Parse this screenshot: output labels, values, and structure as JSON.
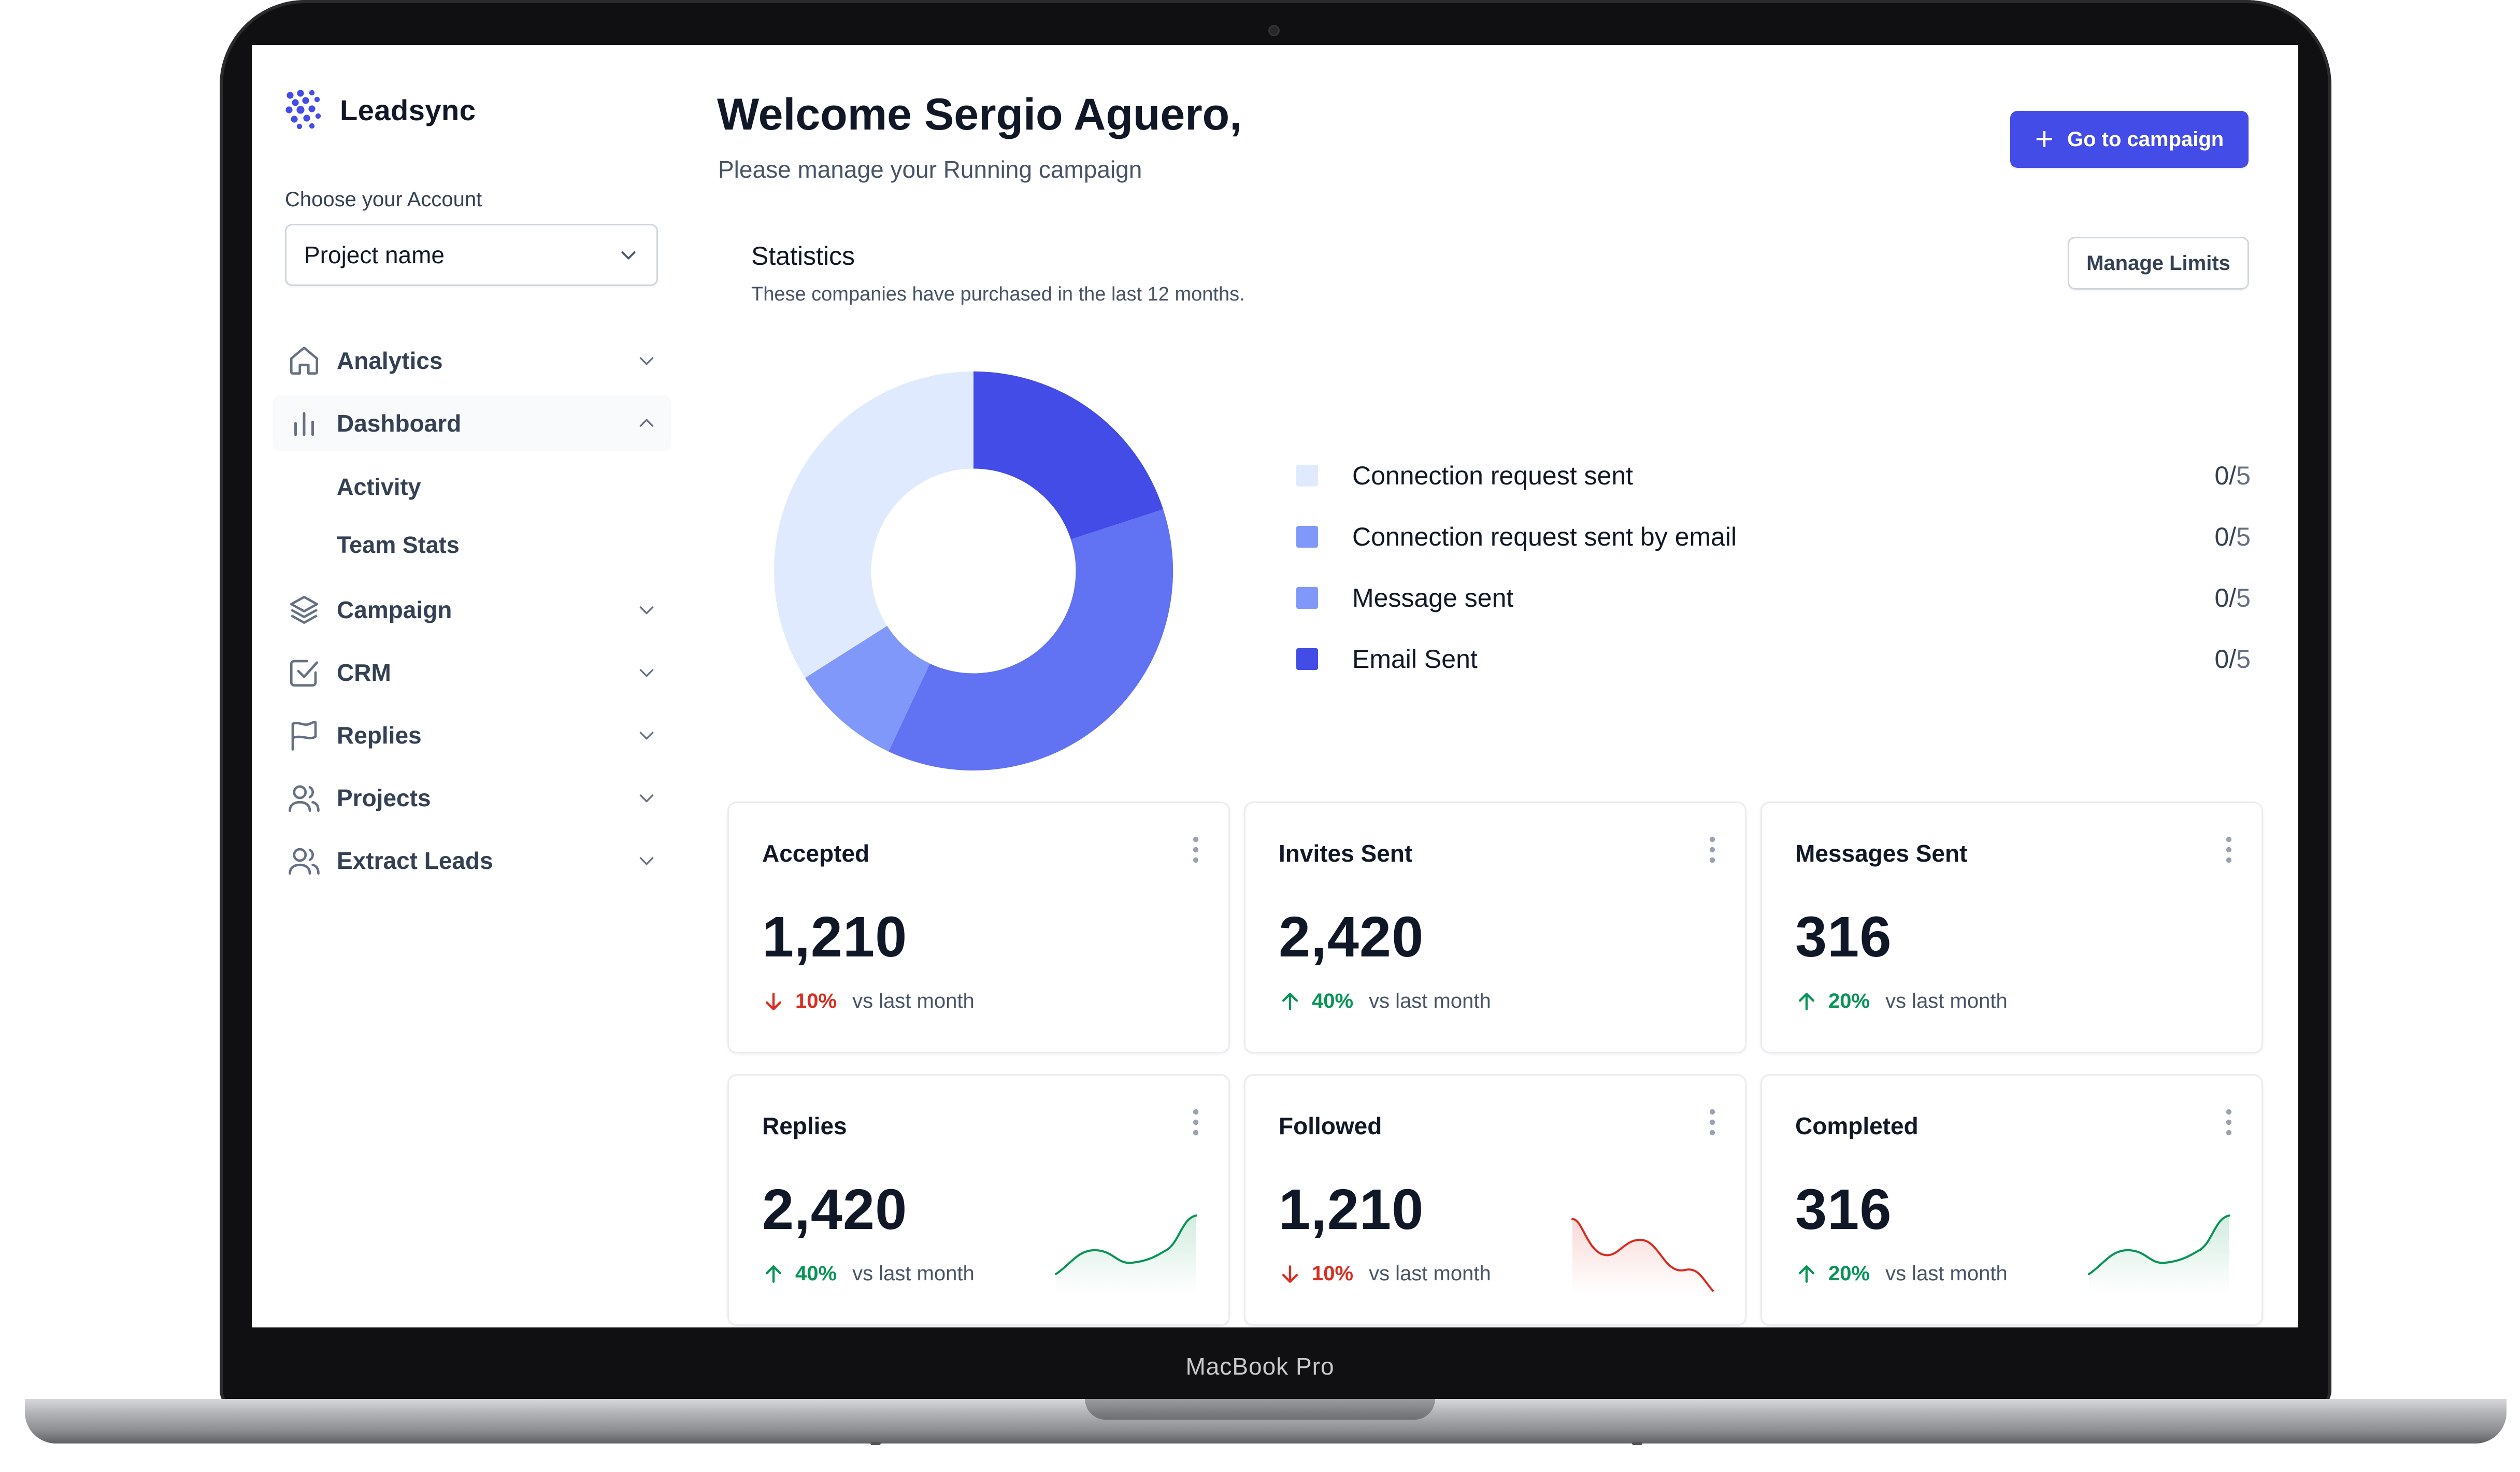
{
  "device": {
    "label": "MacBook Pro"
  },
  "sidebar": {
    "brand": "Leadsync",
    "account_label": "Choose your Account",
    "account_value": "Project name",
    "items": [
      {
        "label": "Analytics",
        "icon": "home-icon"
      },
      {
        "label": "Dashboard",
        "icon": "bar-chart-icon",
        "expanded": true,
        "children": [
          {
            "label": "Activity"
          },
          {
            "label": "Team Stats"
          }
        ]
      },
      {
        "label": "Campaign",
        "icon": "layers-icon"
      },
      {
        "label": "CRM",
        "icon": "check-square-icon"
      },
      {
        "label": "Replies",
        "icon": "flag-icon"
      },
      {
        "label": "Projects",
        "icon": "users-icon"
      },
      {
        "label": "Extract Leads",
        "icon": "users-icon"
      }
    ]
  },
  "header": {
    "title": "Welcome Sergio Aguero,",
    "subtitle": "Please manage your Running campaign",
    "cta_label": "Go to campaign"
  },
  "statistics": {
    "title": "Statistics",
    "subtitle": "These companies have purchased in the last 12 months.",
    "manage_label": "Manage Limits",
    "legend": [
      {
        "label": "Connection request sent",
        "value": "0/",
        "limit": "5",
        "color": "#e0eaff"
      },
      {
        "label": "Connection request sent by email",
        "value": "0/",
        "limit": "5",
        "color": "#8098f9"
      },
      {
        "label": "Message sent",
        "value": "0/",
        "limit": "5",
        "color": "#8098f9"
      },
      {
        "label": "Email Sent",
        "value": "0/",
        "limit": "5",
        "color": "#444ce7"
      }
    ]
  },
  "chart_data": {
    "type": "pie",
    "labels": [
      "Email Sent",
      "Connection request sent by email",
      "Message sent",
      "Connection request sent"
    ],
    "values": [
      20,
      37,
      9,
      34
    ],
    "colors": [
      "#444ce7",
      "#6172f3",
      "#8098f9",
      "#e0eaff"
    ]
  },
  "cards": [
    {
      "title": "Accepted",
      "value": "1,210",
      "pct": "10%",
      "dir": "down",
      "vs": "vs last month"
    },
    {
      "title": "Invites Sent",
      "value": "2,420",
      "pct": "40%",
      "dir": "up",
      "vs": "vs last month"
    },
    {
      "title": "Messages Sent",
      "value": "316",
      "pct": "20%",
      "dir": "up",
      "vs": "vs last month"
    },
    {
      "title": "Replies",
      "value": "2,420",
      "pct": "40%",
      "dir": "up",
      "vs": "vs last month",
      "spark": true
    },
    {
      "title": "Followed",
      "value": "1,210",
      "pct": "10%",
      "dir": "down",
      "vs": "vs last month",
      "spark": true
    },
    {
      "title": "Completed",
      "value": "316",
      "pct": "20%",
      "dir": "up",
      "vs": "vs last month",
      "spark": true
    }
  ],
  "colors": {
    "accent": "#444ce7",
    "up": "#079455",
    "down": "#d92d20"
  }
}
